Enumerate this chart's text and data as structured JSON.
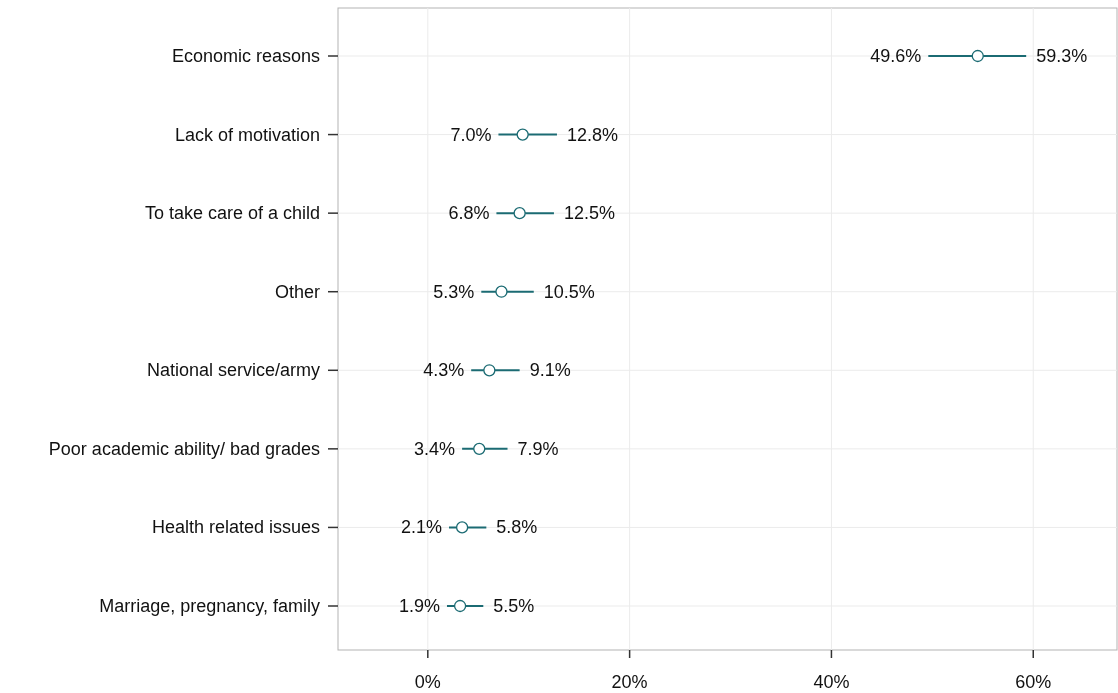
{
  "chart_data": {
    "type": "scatter",
    "orientation": "horizontal",
    "categories": [
      "Economic reasons",
      "Lack of motivation",
      "To take care of a child",
      "Other",
      "National service/army",
      "Poor academic ability/ bad grades",
      "Health related issues",
      "Marriage, pregnancy, family"
    ],
    "values": [
      54.5,
      9.4,
      9.1,
      7.3,
      6.1,
      5.1,
      3.4,
      3.2
    ],
    "errors": [
      [
        49.6,
        59.3
      ],
      [
        7.0,
        12.8
      ],
      [
        6.8,
        12.5
      ],
      [
        5.3,
        10.5
      ],
      [
        4.3,
        9.1
      ],
      [
        3.4,
        7.9
      ],
      [
        2.1,
        5.8
      ],
      [
        1.9,
        5.5
      ]
    ],
    "color": "#1b6b73",
    "marker": "circle",
    "grid": true,
    "xlim": [
      -8.9,
      68.3
    ],
    "xticks": [
      {
        "value": 0,
        "label": "0%"
      },
      {
        "value": 20,
        "label": "20%"
      },
      {
        "value": 40,
        "label": "40%"
      },
      {
        "value": 60,
        "label": "60%"
      }
    ],
    "annotations": [
      "49.6%",
      "59.3%",
      "7.0%",
      "12.8%",
      "6.8%",
      "12.5%",
      "5.3%",
      "10.5%",
      "4.3%",
      "9.1%",
      "3.4%",
      "7.9%",
      "2.1%",
      "5.8%",
      "1.9%",
      "5.5%"
    ]
  }
}
